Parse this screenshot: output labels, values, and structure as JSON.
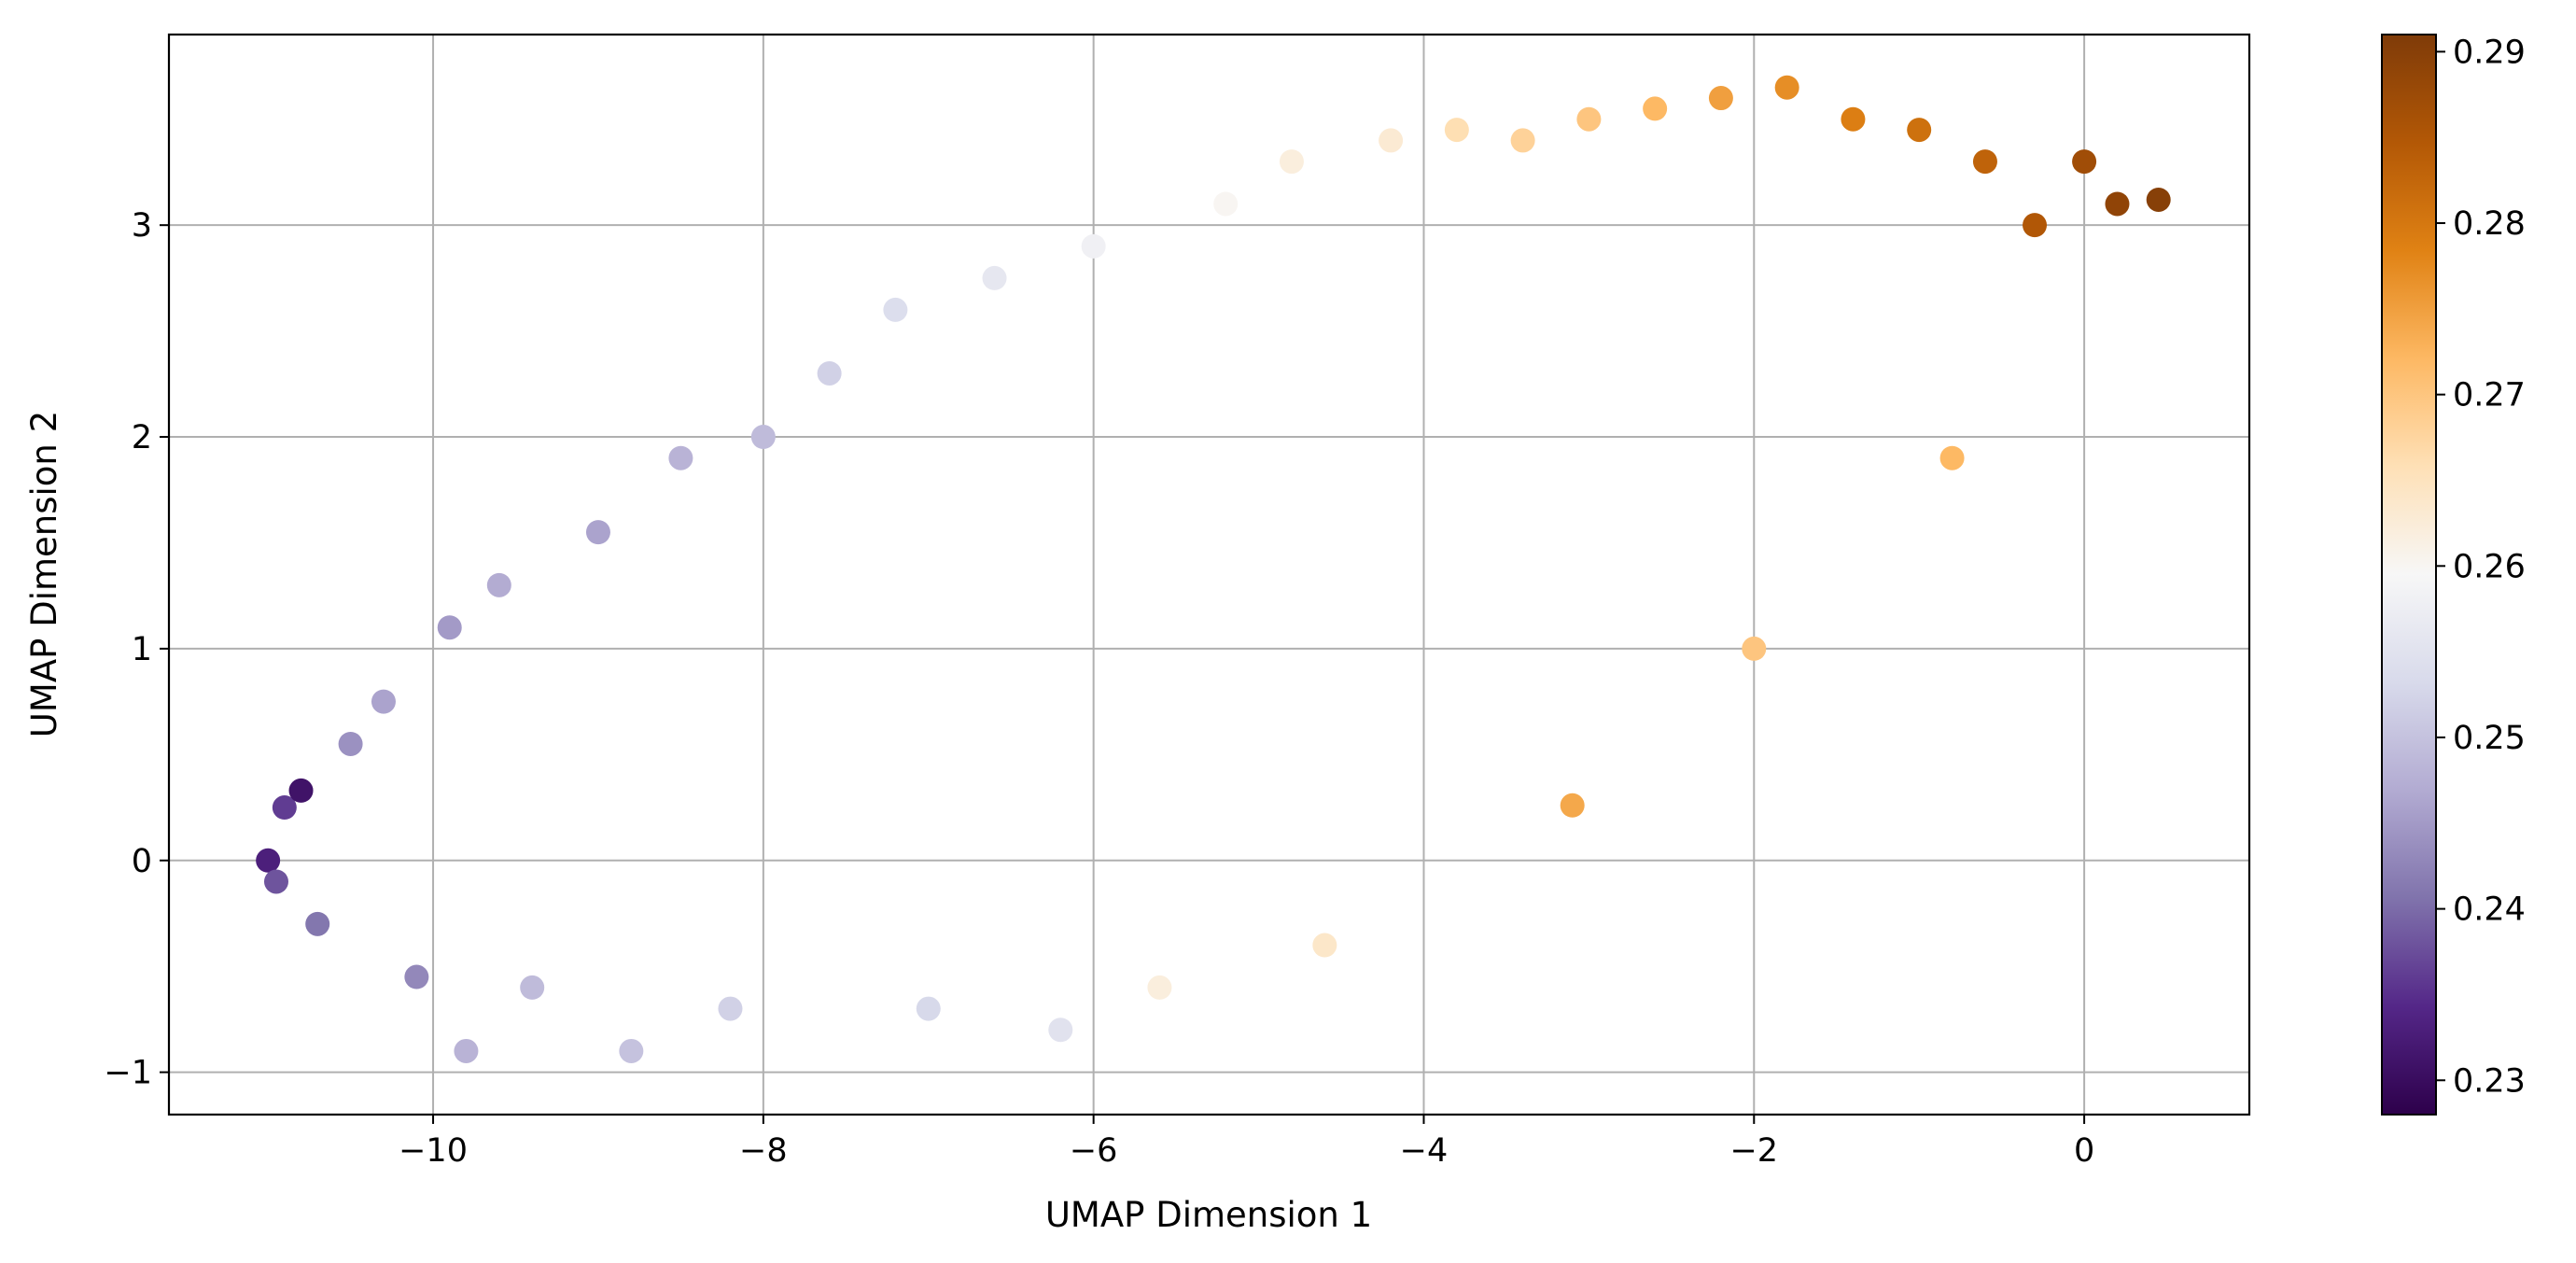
{
  "chart_data": {
    "type": "scatter",
    "title": "",
    "xlabel": "UMAP Dimension 1",
    "ylabel": "UMAP Dimension 2",
    "xlim": [
      -11.6,
      1.0
    ],
    "ylim": [
      -1.2,
      3.9
    ],
    "xticks": [
      -10,
      -8,
      -6,
      -4,
      -2,
      0
    ],
    "xtick_labels": [
      "−10",
      "−8",
      "−6",
      "−4",
      "−2",
      "0"
    ],
    "yticks": [
      -1,
      0,
      1,
      2,
      3
    ],
    "ytick_labels": [
      "−1",
      "0",
      "1",
      "2",
      "3"
    ],
    "grid": true,
    "legend": "none",
    "colorbar": {
      "colormap": "PuOr_r",
      "vmin": 0.228,
      "vmax": 0.291,
      "ticks": [
        0.23,
        0.24,
        0.25,
        0.26,
        0.27,
        0.28,
        0.29
      ],
      "tick_labels": [
        "0.23",
        "0.24",
        "0.25",
        "0.26",
        "0.27",
        "0.28",
        "0.29"
      ],
      "stops": [
        "#2d004b",
        "#542788",
        "#8073ac",
        "#b2abd2",
        "#d8daeb",
        "#f7f7f7",
        "#fee0b6",
        "#fdb863",
        "#e08214",
        "#b35806",
        "#7f3b08"
      ]
    },
    "series": [
      {
        "color_by": "value",
        "points": [
          [
            -11.0,
            0.0,
            0.233
          ],
          [
            -10.9,
            0.25,
            0.236
          ],
          [
            -10.8,
            0.33,
            0.231
          ],
          [
            -10.95,
            -0.1,
            0.238
          ],
          [
            -10.7,
            -0.3,
            0.241
          ],
          [
            -10.5,
            0.55,
            0.244
          ],
          [
            -10.3,
            0.75,
            0.246
          ],
          [
            -10.1,
            -0.55,
            0.243
          ],
          [
            -9.9,
            1.1,
            0.245
          ],
          [
            -9.8,
            -0.9,
            0.248
          ],
          [
            -9.6,
            1.3,
            0.247
          ],
          [
            -9.4,
            -0.6,
            0.249
          ],
          [
            -9.0,
            1.55,
            0.246
          ],
          [
            -8.8,
            -0.9,
            0.25
          ],
          [
            -8.5,
            1.9,
            0.248
          ],
          [
            -8.2,
            -0.7,
            0.252
          ],
          [
            -8.0,
            2.0,
            0.249
          ],
          [
            -7.6,
            2.3,
            0.252
          ],
          [
            -7.2,
            2.6,
            0.254
          ],
          [
            -7.0,
            -0.7,
            0.253
          ],
          [
            -6.6,
            2.75,
            0.256
          ],
          [
            -6.2,
            -0.8,
            0.255
          ],
          [
            -6.0,
            2.9,
            0.258
          ],
          [
            -5.6,
            -0.6,
            0.262
          ],
          [
            -5.2,
            3.1,
            0.26
          ],
          [
            -4.8,
            3.3,
            0.262
          ],
          [
            -4.6,
            -0.4,
            0.264
          ],
          [
            -4.2,
            3.4,
            0.263
          ],
          [
            -3.8,
            3.45,
            0.266
          ],
          [
            -3.4,
            3.4,
            0.268
          ],
          [
            -3.1,
            0.26,
            0.274
          ],
          [
            -3.0,
            3.5,
            0.27
          ],
          [
            -2.6,
            3.55,
            0.272
          ],
          [
            -2.2,
            3.6,
            0.275
          ],
          [
            -2.0,
            1.0,
            0.27
          ],
          [
            -1.8,
            3.65,
            0.277
          ],
          [
            -1.4,
            3.5,
            0.279
          ],
          [
            -1.0,
            3.45,
            0.281
          ],
          [
            -0.8,
            1.9,
            0.272
          ],
          [
            -0.6,
            3.3,
            0.283
          ],
          [
            -0.3,
            3.0,
            0.285
          ],
          [
            0.0,
            3.3,
            0.287
          ],
          [
            0.2,
            3.1,
            0.289
          ],
          [
            0.45,
            3.12,
            0.29
          ]
        ]
      }
    ]
  }
}
